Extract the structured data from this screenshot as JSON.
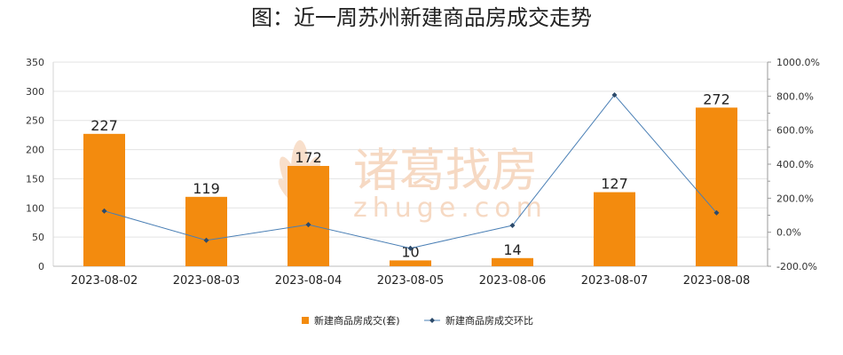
{
  "chart_data": {
    "type": "bar",
    "title": "图：近一周苏州新建商品房成交走势",
    "categories": [
      "2023-08-02",
      "2023-08-03",
      "2023-08-04",
      "2023-08-05",
      "2023-08-06",
      "2023-08-07",
      "2023-08-08"
    ],
    "series": [
      {
        "name": "新建商品房成交(套)",
        "type": "bar",
        "axis": "left",
        "color": "#f38b0e",
        "values": [
          227,
          119,
          172,
          10,
          14,
          127,
          272
        ]
      },
      {
        "name": "新建商品房成交环比",
        "type": "line",
        "axis": "right",
        "color": "#4a7fb5",
        "values": [
          125.0,
          -47.6,
          44.5,
          -94.2,
          40.0,
          807.1,
          114.2
        ]
      }
    ],
    "y_left": {
      "min": 0,
      "max": 350,
      "ticks": [
        "0",
        "50",
        "100",
        "150",
        "200",
        "250",
        "300",
        "350"
      ]
    },
    "y_right": {
      "min": -200,
      "max": 1000,
      "ticks": [
        "-200.0%",
        "0.0%",
        "200.0%",
        "400.0%",
        "600.0%",
        "800.0%",
        "1000.0%"
      ]
    },
    "grid": true,
    "legend_position": "bottom",
    "watermark": {
      "brand": "诸葛找房",
      "domain": "zhuge.com"
    }
  }
}
